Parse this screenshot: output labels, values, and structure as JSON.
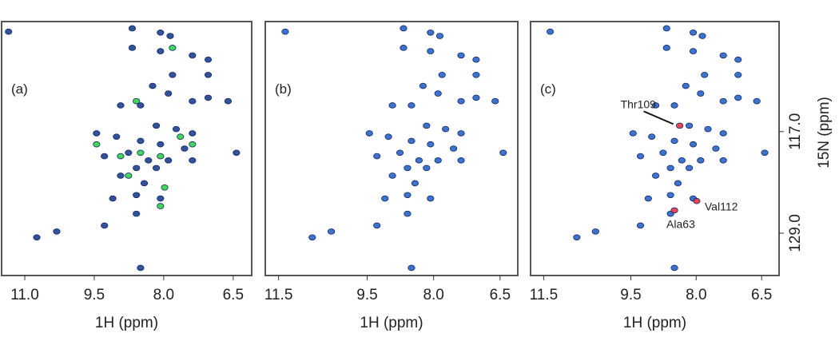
{
  "chart_data": [
    {
      "type": "scatter",
      "label": "(a)",
      "xlabel": "1H (ppm)",
      "xlim": [
        11.5,
        6.1
      ],
      "xticks": [
        {
          "value": 11,
          "label": "11.0"
        },
        9.5,
        {
          "value": 8,
          "label": "8.0"
        },
        6.5
      ],
      "ylim": [
        104,
        134
      ],
      "series": [
        {
          "color": "#1d3f8f",
          "x": [
            11.35,
            8.68,
            8.07,
            7.86,
            8.68,
            8.07,
            7.38,
            7.04,
            7.81,
            7.04,
            8.24,
            8.93,
            8.5,
            7.9,
            7.38,
            7.04,
            6.61,
            8.16,
            7.73,
            7.38,
            9.45,
            9.02,
            8.5,
            8.07,
            7.55,
            8.76,
            8.33,
            7.9,
            7.38,
            6.43,
            9.28,
            8.59,
            8.16,
            8.93,
            8.42,
            8.07,
            8.59,
            9.1,
            8.59,
            9.28,
            10.31,
            10.74,
            8.5
          ],
          "y": [
            105.2,
            104.8,
            105.3,
            105.7,
            107.1,
            107.5,
            108,
            108.5,
            110.3,
            110.3,
            111.6,
            113.9,
            113.9,
            112.5,
            113.4,
            113,
            113.4,
            116.3,
            116.7,
            117.2,
            117.2,
            117.6,
            118.1,
            118.5,
            119,
            119.5,
            120.4,
            120.4,
            120.4,
            119.5,
            119.9,
            121.3,
            121.3,
            122.2,
            123.1,
            124.9,
            124.5,
            124.9,
            126.7,
            128.1,
            128.8,
            129.5,
            133.1
          ]
        },
        {
          "color": "#2fd04a",
          "x": [
            8.93,
            8.5,
            8.07,
            7.64,
            8.76,
            7.98,
            7.38,
            7.81,
            8.59,
            9.45,
            8.07
          ],
          "y": [
            119.9,
            119.5,
            119.9,
            117.6,
            122.2,
            123.6,
            118.5,
            107.1,
            113.4,
            118.5,
            125.8
          ]
        }
      ]
    },
    {
      "type": "scatter",
      "label": "(b)",
      "xlabel": "1H (ppm)",
      "xlim": [
        11.8,
        6.1
      ],
      "xticks": [
        11.5,
        9.5,
        {
          "value": 8,
          "label": "8.0"
        },
        6.5
      ],
      "ylim": [
        104,
        134
      ],
      "series": [
        {
          "color": "#2a63c8",
          "x": [
            11.35,
            8.68,
            8.07,
            7.86,
            8.68,
            8.07,
            7.38,
            7.04,
            7.81,
            7.04,
            8.24,
            8.93,
            8.5,
            7.9,
            7.38,
            7.04,
            6.61,
            8.16,
            7.73,
            7.38,
            9.45,
            9.02,
            8.5,
            8.07,
            7.55,
            8.76,
            8.33,
            7.9,
            7.38,
            6.43,
            9.28,
            8.59,
            8.16,
            8.93,
            8.42,
            8.07,
            8.59,
            9.1,
            8.59,
            9.28,
            10.31,
            10.74,
            8.5
          ],
          "y": [
            105.2,
            104.8,
            105.3,
            105.7,
            107.1,
            107.5,
            108,
            108.5,
            110.3,
            110.3,
            111.6,
            113.9,
            113.9,
            112.5,
            113.4,
            113,
            113.4,
            116.3,
            116.7,
            117.2,
            117.2,
            117.6,
            118.1,
            118.5,
            119,
            119.5,
            120.4,
            120.4,
            120.4,
            119.5,
            119.9,
            121.3,
            121.3,
            122.2,
            123.1,
            124.9,
            124.5,
            124.9,
            126.7,
            128.1,
            128.8,
            129.5,
            133.1
          ]
        }
      ]
    },
    {
      "type": "scatter",
      "label": "(c)",
      "xlabel": "1H (ppm)",
      "ylabel": "15N (ppm)",
      "xlim": [
        11.8,
        6.1
      ],
      "xticks": [
        11.5,
        9.5,
        {
          "value": 8,
          "label": "8.0"
        },
        6.5
      ],
      "ylim": [
        104,
        134
      ],
      "yticks": [
        {
          "value": 117,
          "label": "117.0"
        },
        {
          "value": 129,
          "label": "129.0"
        }
      ],
      "series": [
        {
          "color": "#2a63c8",
          "x": [
            11.35,
            8.68,
            8.07,
            7.86,
            8.68,
            8.07,
            7.38,
            7.04,
            7.81,
            7.04,
            8.24,
            8.93,
            8.5,
            7.9,
            7.38,
            7.04,
            6.61,
            8.16,
            7.73,
            7.38,
            9.45,
            9.02,
            8.5,
            8.07,
            7.55,
            8.76,
            8.33,
            7.9,
            7.38,
            6.43,
            9.28,
            8.59,
            8.16,
            8.93,
            8.42,
            8.07,
            8.59,
            9.1,
            8.59,
            9.28,
            10.31,
            10.74,
            8.5
          ],
          "y": [
            105.2,
            104.8,
            105.3,
            105.7,
            107.1,
            107.5,
            108,
            108.5,
            110.3,
            110.3,
            111.6,
            113.9,
            113.9,
            112.5,
            113.4,
            113,
            113.4,
            116.3,
            116.7,
            117.2,
            117.2,
            117.6,
            118.1,
            118.5,
            119,
            119.5,
            120.4,
            120.4,
            120.4,
            119.5,
            119.9,
            121.3,
            121.3,
            122.2,
            123.1,
            124.9,
            124.5,
            124.9,
            126.7,
            128.1,
            128.8,
            129.5,
            133.1
          ]
        },
        {
          "color": "#e8324a",
          "x": [
            8.38,
            7.99,
            8.5
          ],
          "y": [
            116.3,
            125.2,
            126.3
          ],
          "labels": [
            "Thr109",
            "Val112",
            "Ala63"
          ]
        }
      ]
    }
  ]
}
